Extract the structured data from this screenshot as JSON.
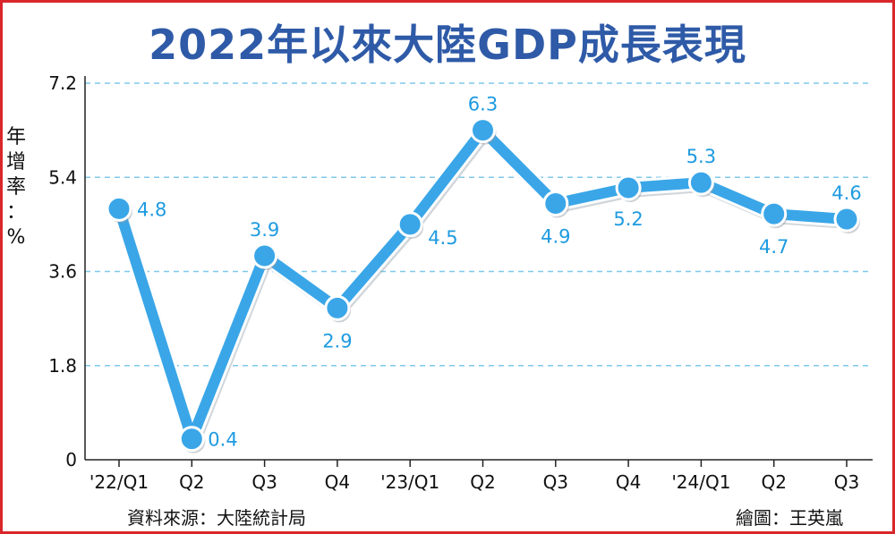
{
  "title": "2022年以來大陸GDP成長表現",
  "ylabel_chars": [
    "年",
    "增",
    "率",
    "：",
    "%"
  ],
  "source": "資料來源：大陸統計局",
  "credit": "繪圖：王英嵐",
  "colors": {
    "line": "#3aa6e8",
    "grid": "#7fc8ea",
    "label": "#1e9be0",
    "title": "#2e5aa7",
    "frame": "#d9262b"
  },
  "chart_data": {
    "type": "line",
    "categories": [
      "'22/Q1",
      "Q2",
      "Q3",
      "Q4",
      "'23/Q1",
      "Q2",
      "Q3",
      "Q4",
      "'24/Q1",
      "Q2",
      "Q3"
    ],
    "values": [
      4.8,
      0.4,
      3.9,
      2.9,
      4.5,
      6.3,
      4.9,
      5.2,
      5.3,
      4.7,
      4.6
    ],
    "value_labels": [
      "4.8",
      "0.4",
      "3.9",
      "2.9",
      "4.5",
      "6.3",
      "4.9",
      "5.2",
      "5.3",
      "4.7",
      "4.6"
    ],
    "yticks": [
      "0",
      "1.8",
      "3.6",
      "5.4",
      "7.2"
    ],
    "ylim": [
      0,
      7.2
    ],
    "grid": true,
    "ylabel": "年增率：%"
  }
}
